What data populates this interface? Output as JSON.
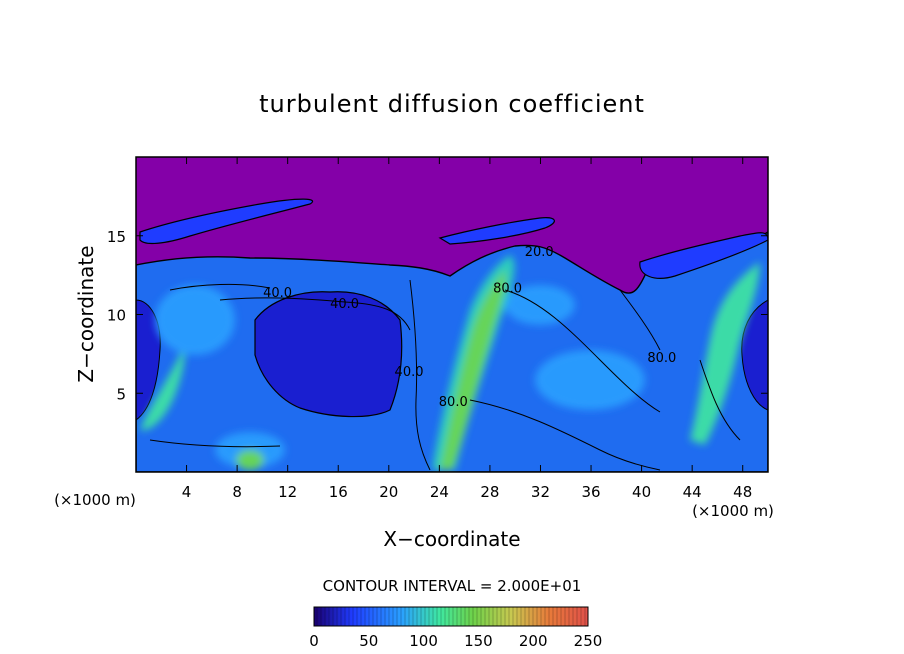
{
  "chart_data": {
    "type": "heatmap",
    "title": "turbulent diffusion coefficient",
    "xlabel": "X−coordinate",
    "ylabel": "Z−coordinate",
    "x_unit": "(×1000 m)",
    "x_unit_right": "(×1000 m)",
    "xlim": [
      0,
      50
    ],
    "ylim": [
      0,
      20
    ],
    "x_ticks": [
      4,
      8,
      12,
      16,
      20,
      24,
      28,
      32,
      36,
      40,
      44,
      48
    ],
    "y_ticks": [
      5,
      10,
      15
    ],
    "contour_interval_text": "CONTOUR INTERVAL = 2.000E+01",
    "contour_labels": [
      {
        "text": "40.0",
        "x": 11.2,
        "y": 11.1
      },
      {
        "text": "40.0",
        "x": 16.5,
        "y": 10.4
      },
      {
        "text": "40.0",
        "x": 21.6,
        "y": 6.1
      },
      {
        "text": "80.0",
        "x": 25.1,
        "y": 4.2
      },
      {
        "text": "80.0",
        "x": 29.4,
        "y": 11.4
      },
      {
        "text": "20.0",
        "x": 31.9,
        "y": 13.7
      },
      {
        "text": "80.0",
        "x": 41.6,
        "y": 7.0
      }
    ],
    "colorbar": {
      "min": 0,
      "max": 250,
      "tick_values": [
        0,
        50,
        100,
        150,
        200,
        250
      ],
      "tick_labels": [
        "0",
        "50",
        "100",
        "150",
        "200",
        "250"
      ],
      "colors": [
        "#1a0070",
        "#1f3cff",
        "#2aa0ff",
        "#3fe8a0",
        "#6ed24a",
        "#c8c850",
        "#e87a3a",
        "#e0504a"
      ]
    },
    "background_value_color": "#8400a8",
    "grid": false
  }
}
